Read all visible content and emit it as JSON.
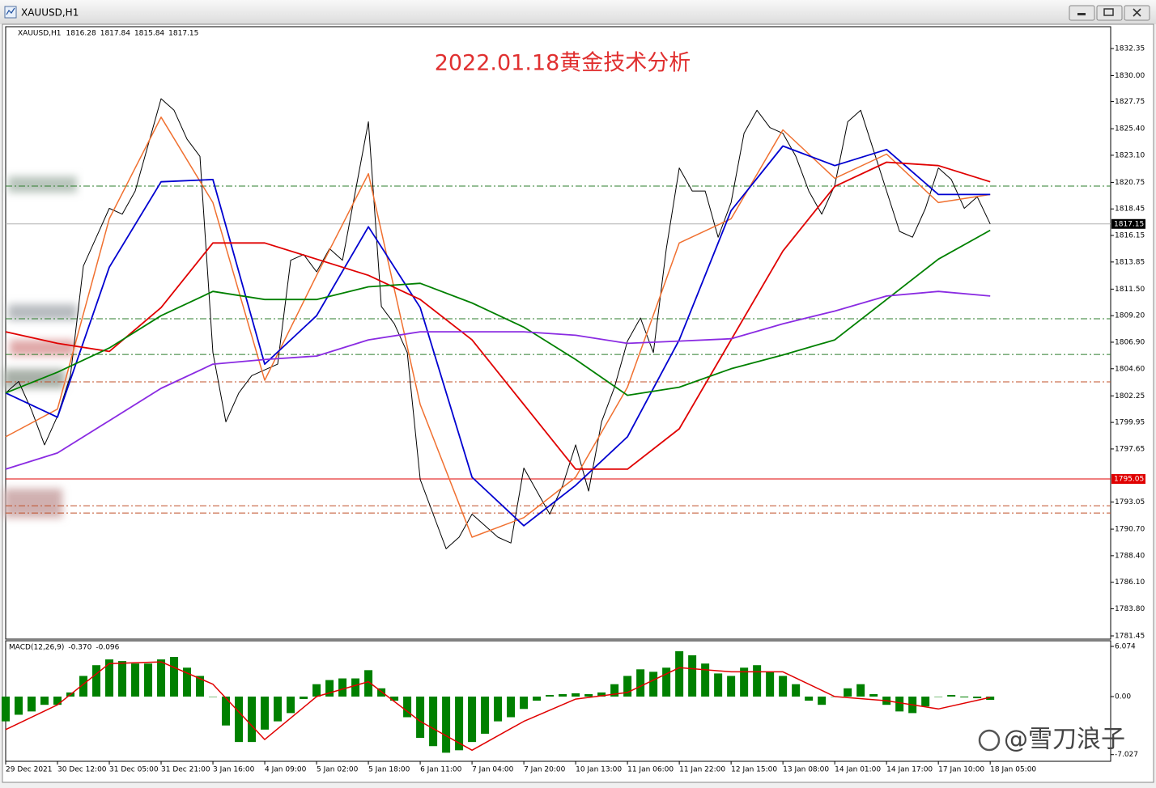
{
  "window_title": "XAUUSD,H1",
  "watermark": "@雪刀浪子",
  "chart_data": [
    {
      "type": "line",
      "title": "2022.01.18黄金技术分析",
      "symbol": "XAUUSD,H1",
      "ohlc": [
        1816.28,
        1817.84,
        1815.84,
        1817.15
      ],
      "xlim": [
        0,
        85.3
      ],
      "xticks": [
        {
          "value": 0,
          "label": "29 Dec 2021"
        },
        {
          "value": 4,
          "label": "30 Dec 12:00"
        },
        {
          "value": 8,
          "label": "31 Dec 05:00"
        },
        {
          "value": 12,
          "label": "31 Dec 21:00"
        },
        {
          "value": 16,
          "label": "3 Jan 16:00"
        },
        {
          "value": 20,
          "label": "4 Jan 09:00"
        },
        {
          "value": 24,
          "label": "5 Jan 02:00"
        },
        {
          "value": 28,
          "label": "5 Jan 18:00"
        },
        {
          "value": 32,
          "label": "6 Jan 11:00"
        },
        {
          "value": 36,
          "label": "7 Jan 04:00"
        },
        {
          "value": 40,
          "label": "7 Jan 20:00"
        },
        {
          "value": 44,
          "label": "10 Jan 13:00"
        },
        {
          "value": 48,
          "label": "11 Jan 06:00"
        },
        {
          "value": 52,
          "label": "11 Jan 22:00"
        },
        {
          "value": 56,
          "label": "12 Jan 15:00"
        },
        {
          "value": 60,
          "label": "13 Jan 08:00"
        },
        {
          "value": 64,
          "label": "14 Jan 01:00"
        },
        {
          "value": 68,
          "label": "14 Jan 17:00"
        },
        {
          "value": 72,
          "label": "17 Jan 10:00"
        },
        {
          "value": 76,
          "label": "18 Jan 05:00"
        }
      ],
      "ylim": [
        1781.17,
        1834.24
      ],
      "yticks": [
        1832.35,
        {
          "value": 1830,
          "label": "1830.00"
        },
        1827.75,
        {
          "value": 1825.4,
          "label": "1825.40"
        },
        {
          "value": 1823.1,
          "label": "1823.10"
        },
        1820.75,
        1818.45,
        1816.15,
        1813.85,
        {
          "value": 1811.5,
          "label": "1811.50"
        },
        {
          "value": 1809.2,
          "label": "1809.20"
        },
        {
          "value": 1806.9,
          "label": "1806.90"
        },
        {
          "value": 1804.6,
          "label": "1804.60"
        },
        1802.25,
        1799.95,
        1797.65,
        1793.05,
        {
          "value": 1790.7,
          "label": "1790.70"
        },
        {
          "value": 1788.4,
          "label": "1788.40"
        },
        {
          "value": 1786.1,
          "label": "1786.10"
        },
        {
          "value": 1783.8,
          "label": "1783.80"
        },
        1781.45
      ],
      "levels": [
        {
          "value": 1820.43,
          "color": "#2e7d2e",
          "style": "dashdot"
        },
        {
          "value": 1808.93,
          "color": "#2e7d2e",
          "style": "dashdot"
        },
        {
          "value": 1805.84,
          "color": "#2e7d2e",
          "style": "dashdot"
        },
        {
          "value": 1803.46,
          "color": "#c0502a",
          "style": "dashdot"
        },
        {
          "value": 1792.73,
          "color": "#c0502a",
          "style": "dashdot"
        },
        {
          "value": 1792.1,
          "color": "#c0502a",
          "style": "dashdot"
        }
      ],
      "price_marks": [
        {
          "value": 1817.15,
          "color": "#000000",
          "line": "#b0b0b0"
        },
        {
          "value": 1795.05,
          "color": "#e00000",
          "line": "#e00000"
        }
      ],
      "series": [
        {
          "color": "#000000",
          "width": 1,
          "x": [
            0,
            1,
            2,
            3,
            4,
            5,
            6,
            7,
            8,
            9,
            10,
            11,
            12,
            13,
            14,
            15,
            16,
            17,
            18,
            19,
            20,
            21,
            22,
            23,
            24,
            25,
            26,
            27,
            28,
            29,
            30,
            31,
            32,
            33,
            34,
            35,
            36,
            37,
            38,
            39,
            40,
            41,
            42,
            43,
            44,
            45,
            46,
            47,
            48,
            49,
            50,
            51,
            52,
            53,
            54,
            55,
            56,
            57,
            58,
            59,
            60,
            61,
            62,
            63,
            64,
            65,
            66,
            67,
            68,
            69,
            70,
            71,
            72,
            73,
            74,
            75,
            76
          ],
          "values": [
            1802.5,
            1803.5,
            1801,
            1798,
            1800.5,
            1804,
            1813.5,
            1816,
            1818.5,
            1818,
            1820,
            1824,
            1828,
            1827,
            1824.5,
            1823,
            1806,
            1800,
            1802.5,
            1804,
            1804.5,
            1805,
            1814,
            1814.5,
            1813,
            1815,
            1814,
            1820,
            1826,
            1810,
            1808.5,
            1806,
            1795,
            1792,
            1789,
            1790,
            1792,
            1791,
            1790,
            1789.5,
            1796,
            1794,
            1792,
            1794.5,
            1798,
            1794,
            1800,
            1803,
            1807,
            1809,
            1806,
            1815,
            1822,
            1820,
            1820,
            1816,
            1819,
            1825,
            1827,
            1825.5,
            1825,
            1823,
            1820,
            1818,
            1820.5,
            1826,
            1827,
            1823.5,
            1820,
            1816.5,
            1816,
            1818.5,
            1822,
            1821,
            1818.5,
            1819.5,
            1817.15
          ]
        },
        {
          "color": "#f07030",
          "width": 1.5,
          "x": [
            0,
            4,
            8,
            12,
            16,
            20,
            24,
            28,
            32,
            36,
            40,
            44,
            48,
            52,
            56,
            60,
            64,
            68,
            72,
            76
          ],
          "values": [
            1798.7,
            1801.1,
            1817.6,
            1826.4,
            1819,
            1803.6,
            1812.7,
            1821.5,
            1801.5,
            1790,
            1791.7,
            1795.2,
            1803,
            1815.5,
            1817.6,
            1825.3,
            1821.1,
            1823.2,
            1819,
            1819.7
          ]
        },
        {
          "color": "#0000d0",
          "width": 1.8,
          "x": [
            0,
            4,
            8,
            12,
            16,
            20,
            24,
            28,
            32,
            36,
            40,
            44,
            48,
            52,
            56,
            60,
            64,
            68,
            72,
            76
          ],
          "values": [
            1802.5,
            1800.4,
            1813.4,
            1820.8,
            1821,
            1805,
            1809.2,
            1816.9,
            1809.9,
            1795.2,
            1791,
            1794.5,
            1798.7,
            1807.1,
            1818.3,
            1823.9,
            1822.2,
            1823.6,
            1819.7,
            1819.7
          ]
        },
        {
          "color": "#e00000",
          "width": 1.8,
          "x": [
            0,
            4,
            8,
            12,
            16,
            20,
            24,
            28,
            32,
            36,
            40,
            44,
            48,
            52,
            56,
            60,
            64,
            68,
            72,
            76
          ],
          "values": [
            1807.8,
            1806.8,
            1806.1,
            1809.9,
            1815.5,
            1815.5,
            1814.1,
            1812.7,
            1810.6,
            1807.1,
            1801.5,
            1795.9,
            1795.9,
            1799.4,
            1807.1,
            1814.8,
            1820.4,
            1822.5,
            1822.2,
            1820.8
          ]
        },
        {
          "color": "#008000",
          "width": 1.8,
          "x": [
            0,
            4,
            8,
            12,
            16,
            20,
            24,
            28,
            32,
            36,
            40,
            44,
            48,
            52,
            56,
            60,
            64,
            68,
            72,
            76
          ],
          "values": [
            1802.5,
            1804.3,
            1806.4,
            1809.2,
            1811.3,
            1810.6,
            1810.6,
            1811.7,
            1812,
            1810.3,
            1808.2,
            1805.4,
            1802.3,
            1803,
            1804.6,
            1805.8,
            1807.1,
            1810.6,
            1814.1,
            1816.6
          ]
        },
        {
          "color": "#8a2be2",
          "width": 1.8,
          "x": [
            0,
            4,
            8,
            12,
            16,
            20,
            24,
            28,
            32,
            36,
            40,
            44,
            48,
            52,
            56,
            60,
            64,
            68,
            72,
            76
          ],
          "values": [
            1795.9,
            1797.3,
            1800.1,
            1802.9,
            1805,
            1805.4,
            1805.7,
            1807.1,
            1807.8,
            1807.8,
            1807.8,
            1807.5,
            1806.8,
            1807,
            1807.2,
            1808.5,
            1809.6,
            1810.9,
            1811.3,
            1810.9
          ]
        }
      ]
    },
    {
      "type": "bar",
      "label": "MACD(12,26,9)",
      "readings": [
        {
          "value": -0.37,
          "label": "-0.370"
        },
        -0.096
      ],
      "xlim": [
        0,
        85.3
      ],
      "ylim": [
        -7.74,
        6.76
      ],
      "yticks": [
        6.074,
        {
          "value": 0,
          "label": "0.00"
        },
        -7.027
      ],
      "series": [
        {
          "color": "#008000",
          "x": [
            0,
            1,
            2,
            3,
            4,
            5,
            6,
            7,
            8,
            9,
            10,
            11,
            12,
            13,
            14,
            15,
            16,
            17,
            18,
            19,
            20,
            21,
            22,
            23,
            24,
            25,
            26,
            27,
            28,
            29,
            30,
            31,
            32,
            33,
            34,
            35,
            36,
            37,
            38,
            39,
            40,
            41,
            42,
            43,
            44,
            45,
            46,
            47,
            48,
            49,
            50,
            51,
            52,
            53,
            54,
            55,
            56,
            57,
            58,
            59,
            60,
            61,
            62,
            63,
            64,
            65,
            66,
            67,
            68,
            69,
            70,
            71,
            72,
            73,
            74,
            75,
            76
          ],
          "values": [
            -3,
            -2.2,
            -1.8,
            -1,
            -1,
            0.5,
            2.5,
            3.8,
            4.5,
            4.3,
            4,
            4,
            4.5,
            4.8,
            3.5,
            2.5,
            0,
            -3.5,
            -5.5,
            -5.5,
            -4,
            -3,
            -2,
            -0.3,
            1.5,
            2,
            2.2,
            2.2,
            3.2,
            1,
            -0.5,
            -2.5,
            -5,
            -6,
            -6.8,
            -6.5,
            -5.5,
            -4.5,
            -3,
            -2.5,
            -1.5,
            -0.5,
            0.2,
            0.3,
            0.4,
            0.3,
            0.5,
            1.5,
            2.5,
            3.3,
            3,
            3.5,
            5.5,
            5,
            4,
            2.8,
            2.5,
            3.5,
            3.8,
            3,
            2.5,
            1.5,
            -0.5,
            -1,
            0,
            1,
            1.5,
            0.3,
            -1,
            -1.8,
            -2,
            -1.2,
            0,
            0.2,
            -0.1,
            -0.2,
            -0.4
          ]
        },
        {
          "type": "line",
          "color": "#e00000",
          "x": [
            0,
            4,
            8,
            12,
            16,
            20,
            24,
            28,
            32,
            36,
            40,
            44,
            48,
            52,
            56,
            60,
            64,
            68,
            72,
            76
          ],
          "values": [
            -4,
            -1,
            4,
            4.2,
            1.5,
            -5.2,
            0,
            1.8,
            -3,
            -6.5,
            -3,
            -0.3,
            0.5,
            3.5,
            3,
            3,
            0,
            -0.5,
            -1.5,
            -0.1
          ]
        }
      ]
    }
  ]
}
